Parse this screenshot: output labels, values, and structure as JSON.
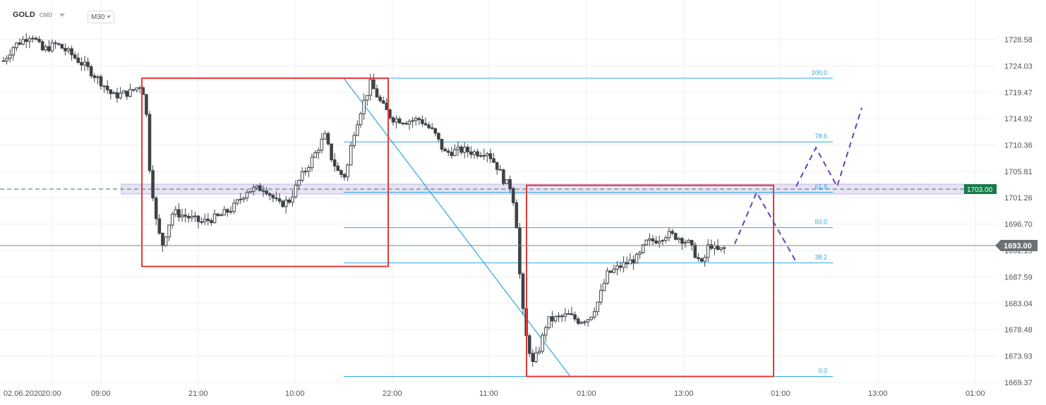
{
  "header": {
    "symbol": "GOLD",
    "sub": "CMD",
    "timeframe": "M30"
  },
  "colors": {
    "up": "#4a4f55",
    "down": "#4a4f55",
    "grid": "#eef0f2",
    "fib": "#29a8e0",
    "box": "#e53935",
    "projection": "#6a3fb5",
    "price_tag_green": "#147a4a",
    "price_tag_gray": "#6b7075",
    "zone_fill": "#e4def4",
    "zone_stroke": "#b9a9df"
  },
  "chart_data": {
    "type": "candlestick",
    "y_axis_ticks": [
      "1728.58",
      "1724.03",
      "1719.47",
      "1714.92",
      "1710.36",
      "1705.81",
      "1701.26",
      "1696.70",
      "1692.15",
      "1687.59",
      "1683.04",
      "1678.48",
      "1673.93",
      "1669.37"
    ],
    "x_axis_ticks": [
      "02.06.2020",
      "20:00",
      "09:00",
      "21:00",
      "10:00",
      "22:00",
      "11:00",
      "01:00",
      "13:00",
      "01:00",
      "13:00",
      "01:00"
    ],
    "ylim": [
      1669.37,
      1728.58
    ],
    "current_price": "1693.00",
    "zone_price_label": "1703.00",
    "fib_levels": [
      {
        "label": "100.0",
        "value": 1721.9
      },
      {
        "label": "78.6",
        "value": 1710.9
      },
      {
        "label": "61.8",
        "value": 1702.2
      },
      {
        "label": "50.0",
        "value": 1696.1
      },
      {
        "label": "38.2",
        "value": 1690.0
      },
      {
        "label": "0.0",
        "value": 1670.4
      }
    ],
    "zone": [
      1701.9,
      1703.6
    ],
    "projection_path": [
      [
        1041,
        1693.3
      ],
      [
        1072,
        1702.2
      ],
      [
        1128,
        1690.2
      ]
    ],
    "projection_path_upper": [
      [
        1128,
        1703.2
      ],
      [
        1156,
        1709.9
      ],
      [
        1186,
        1703.2
      ],
      [
        1221,
        1716.8
      ]
    ]
  }
}
